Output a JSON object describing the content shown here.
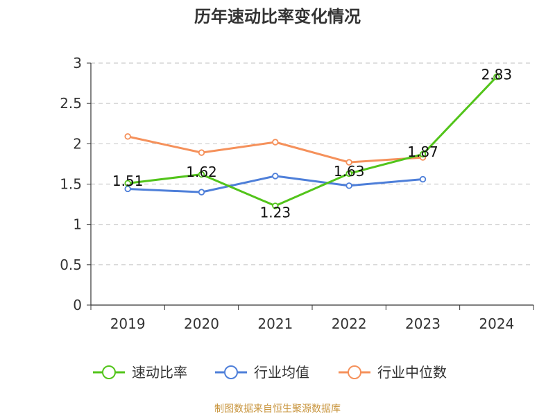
{
  "chart_data": {
    "type": "line",
    "title": "历年速动比率变化情况",
    "xlabel": "",
    "ylabel": "",
    "categories": [
      "2019",
      "2020",
      "2021",
      "2022",
      "2023",
      "2024"
    ],
    "ylim": [
      0,
      3
    ],
    "yticks": [
      "0",
      "0.5",
      "1",
      "1.5",
      "2",
      "2.5",
      "3"
    ],
    "grid": true,
    "legend_position": "bottom",
    "series": [
      {
        "name": "速动比率",
        "color": "#52c41a",
        "values": [
          1.51,
          1.62,
          1.23,
          1.63,
          1.87,
          2.83
        ],
        "labels": [
          "1.51",
          "1.62",
          "1.23",
          "1.63",
          "1.87",
          "2.83"
        ]
      },
      {
        "name": "行业均值",
        "color": "#4e7fd9",
        "values": [
          1.44,
          1.4,
          1.6,
          1.48,
          1.56,
          null
        ]
      },
      {
        "name": "行业中位数",
        "color": "#f5915b",
        "values": [
          2.09,
          1.89,
          2.02,
          1.77,
          1.83,
          null
        ]
      }
    ]
  },
  "source": {
    "text": "制图数据来自恒生聚源数据库",
    "color": "#c8943c"
  }
}
